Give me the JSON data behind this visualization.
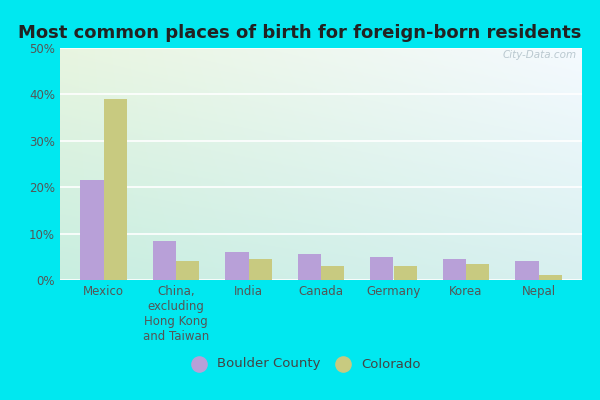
{
  "title": "Most common places of birth for foreign-born residents",
  "categories": [
    "Mexico",
    "China,\nexcluding\nHong Kong\nand Taiwan",
    "India",
    "Canada",
    "Germany",
    "Korea",
    "Nepal"
  ],
  "boulder_county": [
    21.5,
    8.5,
    6.0,
    5.5,
    5.0,
    4.5,
    4.0
  ],
  "colorado": [
    39.0,
    4.0,
    4.5,
    3.0,
    3.0,
    3.5,
    1.0
  ],
  "boulder_color": "#b8a0d8",
  "colorado_color": "#c8ca80",
  "ylim": [
    0,
    50
  ],
  "yticks": [
    0,
    10,
    20,
    30,
    40,
    50
  ],
  "background_outer": "#00e8f0",
  "background_grad_topleft": "#e8f5e0",
  "background_grad_topright": "#f5faff",
  "background_grad_bottom": "#c8eee0",
  "grid_color": "#ffffff",
  "title_fontsize": 13,
  "tick_fontsize": 8.5,
  "legend_labels": [
    "Boulder County",
    "Colorado"
  ],
  "watermark": "City-Data.com"
}
